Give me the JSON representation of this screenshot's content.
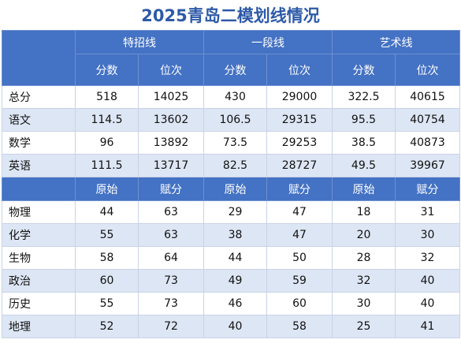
{
  "title": "2025青岛二模划线情况",
  "groups": [
    "特招线",
    "一段线",
    "艺术线"
  ],
  "sub_headers_1": [
    "分数",
    "位次",
    "分数",
    "位次",
    "分数",
    "位次"
  ],
  "rows_1": [
    {
      "label": "总分",
      "values": [
        "518",
        "14025",
        "430",
        "29000",
        "322.5",
        "40615"
      ]
    },
    {
      "label": "语文",
      "values": [
        "114.5",
        "13602",
        "106.5",
        "29315",
        "95.5",
        "40754"
      ]
    },
    {
      "label": "数学",
      "values": [
        "96",
        "13892",
        "73.5",
        "29253",
        "38.5",
        "40873"
      ]
    },
    {
      "label": "英语",
      "values": [
        "111.5",
        "13717",
        "82.5",
        "28727",
        "49.5",
        "39967"
      ]
    }
  ],
  "sub_headers_2": [
    "原始",
    "赋分",
    "原始",
    "赋分",
    "原始",
    "赋分"
  ],
  "rows_2": [
    {
      "label": "物理",
      "values": [
        "44",
        "63",
        "29",
        "47",
        "18",
        "31"
      ]
    },
    {
      "label": "化学",
      "values": [
        "55",
        "63",
        "38",
        "47",
        "20",
        "30"
      ]
    },
    {
      "label": "生物",
      "values": [
        "58",
        "64",
        "44",
        "50",
        "28",
        "32"
      ]
    },
    {
      "label": "政治",
      "values": [
        "60",
        "73",
        "49",
        "59",
        "32",
        "40"
      ]
    },
    {
      "label": "历史",
      "values": [
        "55",
        "73",
        "46",
        "60",
        "30",
        "40"
      ]
    },
    {
      "label": "地理",
      "values": [
        "52",
        "72",
        "40",
        "58",
        "25",
        "41"
      ]
    }
  ]
}
